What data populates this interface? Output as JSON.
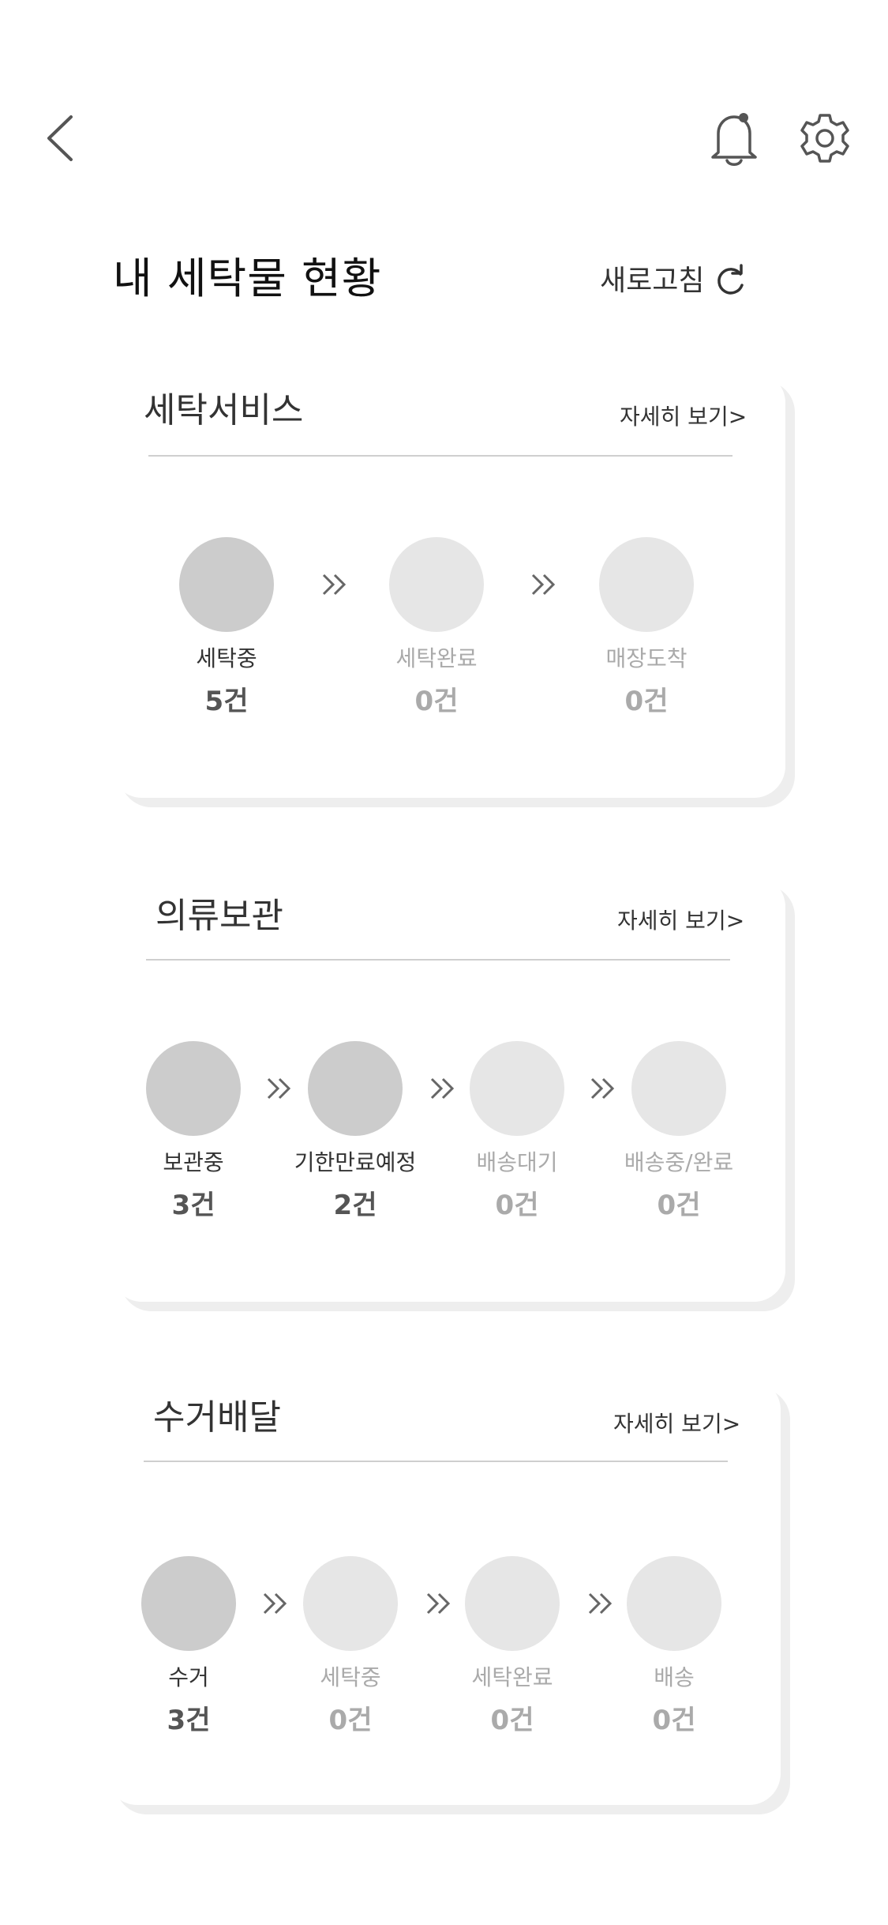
{
  "header": {
    "title": "내 세탁물 현황",
    "refresh_label": "새로고침",
    "icons": {
      "back": "chevron-left-icon",
      "notification": "bell-icon",
      "settings": "gear-icon",
      "refresh": "refresh-icon"
    }
  },
  "sections": [
    {
      "title": "세탁서비스",
      "detail_link": "자세히 보기>",
      "steps": [
        {
          "label": "세탁중",
          "count": "5건",
          "active": true
        },
        {
          "label": "세탁완료",
          "count": "0건",
          "active": false
        },
        {
          "label": "매장도착",
          "count": "0건",
          "active": false
        }
      ]
    },
    {
      "title": "의류보관",
      "detail_link": "자세히 보기>",
      "steps": [
        {
          "label": "보관중",
          "count": "3건",
          "active": true
        },
        {
          "label": "기한만료예정",
          "count": "2건",
          "active": true
        },
        {
          "label": "배송대기",
          "count": "0건",
          "active": false
        },
        {
          "label": "배송중/완료",
          "count": "0건",
          "active": false
        }
      ]
    },
    {
      "title": "수거배달",
      "detail_link": "자세히 보기>",
      "steps": [
        {
          "label": "수거",
          "count": "3건",
          "active": true
        },
        {
          "label": "세탁중",
          "count": "0건",
          "active": false
        },
        {
          "label": "세탁완료",
          "count": "0건",
          "active": false
        },
        {
          "label": "배송",
          "count": "0건",
          "active": false
        }
      ]
    }
  ],
  "colors": {
    "active_circle": "#cccccc",
    "inactive_circle": "#e6e6e6",
    "inactive_text": "#aaaaaa",
    "card_shadow": "#eeeeee"
  }
}
